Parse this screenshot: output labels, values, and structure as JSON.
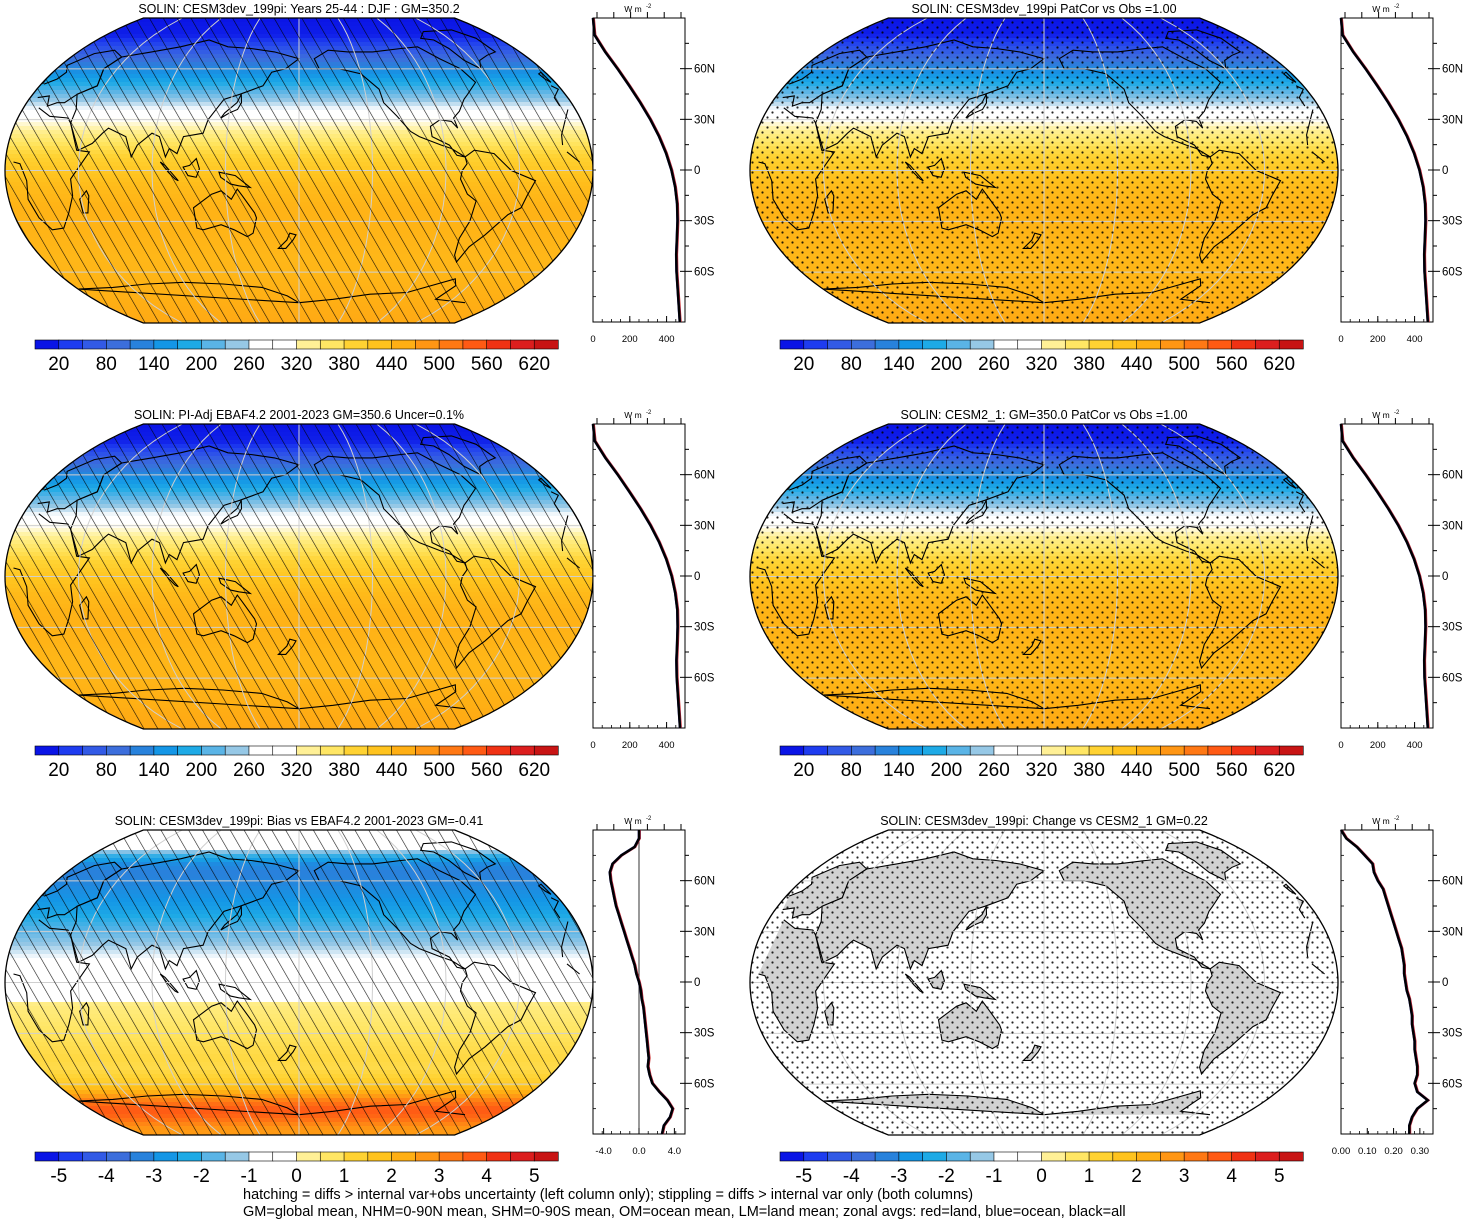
{
  "footer": {
    "line1": "hatching = diffs > internal var+obs uncertainty (left column only); stippling = diffs > internal var only (both columns)",
    "line2": "GM=global mean, NHM=0-90N mean, SHM=0-90S mean, OM=ocean mean, LM=land mean; zonal avgs: red=land, blue=ocean, black=all"
  },
  "colors": {
    "full_scale": [
      "#0a14e6",
      "#1e3cf0",
      "#325ae6",
      "#3c6edc",
      "#2882dc",
      "#1496e6",
      "#1eaae6",
      "#5ab4e6",
      "#96c8e6",
      "#ffffff",
      "#ffffff",
      "#fff096",
      "#ffe664",
      "#ffd232",
      "#ffc31e",
      "#ffaf14",
      "#ff9614",
      "#ff7814",
      "#ff5a14",
      "#f03214",
      "#dc1e1e",
      "#c81414"
    ],
    "bias_scale": [
      "#0a14e6",
      "#1e3cf0",
      "#325ae6",
      "#3c6edc",
      "#2882dc",
      "#1496e6",
      "#1eaae6",
      "#5ab4e6",
      "#96c8e6",
      "#ffffff",
      "#ffffff",
      "#fff096",
      "#ffe664",
      "#ffd232",
      "#ffc31e",
      "#ffaf14",
      "#ff9614",
      "#ff7814",
      "#ff5a14",
      "#f03214",
      "#dc1e1e",
      "#c81414"
    ],
    "land_gray": "#d2d2d2"
  },
  "chart_data": [
    {
      "type": "heatmap",
      "title": "SOLIN: CESM3dev_199pi: Years 25-44 : DJF : GM=350.2",
      "field": "full",
      "overlay": "hatch",
      "colorbar_labels": [
        "20",
        "80",
        "140",
        "200",
        "260",
        "320",
        "380",
        "440",
        "500",
        "560",
        "620"
      ],
      "zonal": {
        "unit_label": "W m",
        "unit_exp": "-2",
        "lat_labels": [
          "60N",
          "30N",
          "0",
          "30S",
          "60S"
        ],
        "x_tick_labels": [
          "0",
          "200",
          "400"
        ],
        "xlim": [
          0,
          500
        ],
        "lat": [
          90,
          80,
          70,
          60,
          50,
          40,
          30,
          20,
          10,
          0,
          -10,
          -20,
          -30,
          -40,
          -50,
          -60,
          -70,
          -80,
          -90
        ],
        "values": [
          0,
          8,
          66,
          133,
          196,
          256,
          311,
          358,
          397,
          426,
          446,
          457,
          459,
          456,
          452,
          454,
          460,
          466,
          472
        ]
      }
    },
    {
      "type": "heatmap",
      "title": "SOLIN: CESM3dev_199pi PatCor vs Obs =1.00",
      "field": "full",
      "overlay": "stipple",
      "colorbar_labels": [
        "20",
        "80",
        "140",
        "200",
        "260",
        "320",
        "380",
        "440",
        "500",
        "560",
        "620"
      ],
      "zonal": {
        "unit_label": "W m",
        "unit_exp": "-2",
        "lat_labels": [
          "60N",
          "30N",
          "0",
          "30S",
          "60S"
        ],
        "x_tick_labels": [
          "0",
          "200",
          "400"
        ],
        "xlim": [
          0,
          500
        ],
        "lat": [
          90,
          80,
          70,
          60,
          50,
          40,
          30,
          20,
          10,
          0,
          -10,
          -20,
          -30,
          -40,
          -50,
          -60,
          -70,
          -80,
          -90
        ],
        "values": [
          0,
          8,
          66,
          133,
          196,
          256,
          311,
          358,
          397,
          426,
          446,
          457,
          459,
          456,
          452,
          454,
          460,
          466,
          472
        ]
      }
    },
    {
      "type": "heatmap",
      "title": "SOLIN: PI-Adj EBAF4.2 2001-2023 GM=350.6 Uncer=0.1%",
      "field": "full",
      "overlay": "hatch",
      "colorbar_labels": [
        "20",
        "80",
        "140",
        "200",
        "260",
        "320",
        "380",
        "440",
        "500",
        "560",
        "620"
      ],
      "zonal": {
        "unit_label": "W m",
        "unit_exp": "-2",
        "lat_labels": [
          "60N",
          "30N",
          "0",
          "30S",
          "60S"
        ],
        "x_tick_labels": [
          "0",
          "200",
          "400"
        ],
        "xlim": [
          0,
          500
        ],
        "lat": [
          90,
          80,
          70,
          60,
          50,
          40,
          30,
          20,
          10,
          0,
          -10,
          -20,
          -30,
          -40,
          -50,
          -60,
          -70,
          -80,
          -90
        ],
        "values": [
          0,
          9,
          67,
          134,
          197,
          257,
          312,
          359,
          398,
          427,
          447,
          458,
          460,
          457,
          453,
          455,
          461,
          467,
          473
        ]
      }
    },
    {
      "type": "heatmap",
      "title": "SOLIN: CESM2_1: GM=350.0 PatCor vs Obs =1.00",
      "field": "full",
      "overlay": "stipple",
      "colorbar_labels": [
        "20",
        "80",
        "140",
        "200",
        "260",
        "320",
        "380",
        "440",
        "500",
        "560",
        "620"
      ],
      "zonal": {
        "unit_label": "W m",
        "unit_exp": "-2",
        "lat_labels": [
          "60N",
          "30N",
          "0",
          "30S",
          "60S"
        ],
        "x_tick_labels": [
          "0",
          "200",
          "400"
        ],
        "xlim": [
          0,
          500
        ],
        "lat": [
          90,
          80,
          70,
          60,
          50,
          40,
          30,
          20,
          10,
          0,
          -10,
          -20,
          -30,
          -40,
          -50,
          -60,
          -70,
          -80,
          -90
        ],
        "values": [
          0,
          8,
          66,
          133,
          196,
          256,
          311,
          358,
          397,
          426,
          446,
          457,
          459,
          456,
          452,
          454,
          460,
          466,
          472
        ]
      }
    },
    {
      "type": "heatmap",
      "title": "SOLIN: CESM3dev_199pi: Bias vs EBAF4.2 2001-2023 GM=-0.41",
      "field": "bias",
      "overlay": "hatch",
      "colorbar_labels": [
        "-5",
        "-4",
        "-3",
        "-2",
        "-1",
        "0",
        "1",
        "2",
        "3",
        "4",
        "5"
      ],
      "zonal": {
        "unit_label": "W m",
        "unit_exp": "-2",
        "lat_labels": [
          "60N",
          "30N",
          "0",
          "30S",
          "60S"
        ],
        "x_tick_labels": [
          "-4.0",
          "0.0",
          "4.0"
        ],
        "x_ticks": [
          -4,
          0,
          4
        ],
        "xlim": [
          -5.2,
          5.2
        ],
        "zero_line": true,
        "lat": [
          90,
          85,
          80,
          75,
          70,
          65,
          60,
          55,
          50,
          45,
          40,
          35,
          30,
          25,
          20,
          15,
          10,
          5,
          0,
          -5,
          -10,
          -15,
          -20,
          -25,
          -30,
          -35,
          -40,
          -45,
          -50,
          -55,
          -60,
          -65,
          -70,
          -75,
          -80,
          -85,
          -90
        ],
        "values": [
          0.0,
          0.0,
          -0.5,
          -2.0,
          -3.0,
          -3.3,
          -3.2,
          -3.0,
          -2.8,
          -2.6,
          -2.3,
          -2.0,
          -1.7,
          -1.4,
          -1.1,
          -0.8,
          -0.5,
          -0.3,
          0.0,
          0.2,
          0.3,
          0.5,
          0.6,
          0.7,
          0.8,
          0.9,
          1.0,
          1.1,
          1.0,
          1.2,
          1.5,
          2.3,
          3.2,
          3.8,
          3.5,
          2.8,
          2.6
        ]
      }
    },
    {
      "type": "heatmap",
      "title": "SOLIN: CESM3dev_199pi: Change vs CESM2_1 GM=0.22",
      "field": "change",
      "overlay": "stipple",
      "colorbar_labels": [
        "-5",
        "-4",
        "-3",
        "-2",
        "-1",
        "0",
        "1",
        "2",
        "3",
        "4",
        "5"
      ],
      "zonal": {
        "unit_label": "W m",
        "unit_exp": "-2",
        "lat_labels": [
          "60N",
          "30N",
          "0",
          "30S",
          "60S"
        ],
        "x_tick_labels": [
          "0.00",
          "0.10",
          "0.20",
          "0.30"
        ],
        "x_ticks": [
          0.0,
          0.1,
          0.2,
          0.3
        ],
        "xlim": [
          0.0,
          0.35
        ],
        "lat": [
          90,
          85,
          80,
          75,
          70,
          65,
          60,
          55,
          50,
          45,
          40,
          35,
          30,
          25,
          20,
          15,
          10,
          5,
          0,
          -5,
          -10,
          -15,
          -20,
          -25,
          -30,
          -35,
          -40,
          -45,
          -50,
          -55,
          -60,
          -65,
          -70,
          -75,
          -80,
          -85,
          -90
        ],
        "values": [
          0.0,
          0.02,
          0.06,
          0.09,
          0.12,
          0.125,
          0.14,
          0.16,
          0.17,
          0.18,
          0.19,
          0.2,
          0.21,
          0.22,
          0.23,
          0.235,
          0.24,
          0.24,
          0.245,
          0.25,
          0.26,
          0.265,
          0.27,
          0.27,
          0.275,
          0.28,
          0.28,
          0.285,
          0.29,
          0.29,
          0.28,
          0.29,
          0.33,
          0.29,
          0.27,
          0.26,
          0.26
        ]
      }
    }
  ]
}
